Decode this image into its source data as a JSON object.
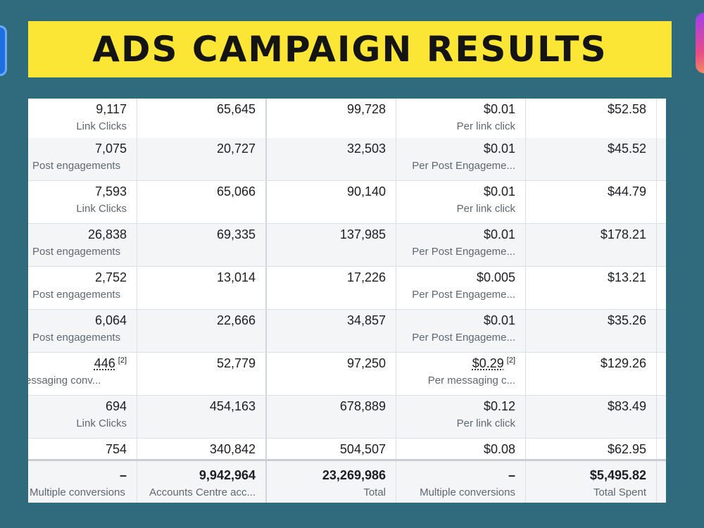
{
  "banner": {
    "title": "ADS CAMPAIGN RESULTS"
  },
  "table": {
    "rows": [
      {
        "results": "9,117",
        "results_type": "Link Clicks",
        "reach": "65,645",
        "impressions": "99,728",
        "cost": "$0.01",
        "cost_type": "Per link click",
        "spent": "$52.58"
      },
      {
        "results": "7,075",
        "results_type": "Post engagements",
        "reach": "20,727",
        "impressions": "32,503",
        "cost": "$0.01",
        "cost_type": "Per Post Engageme...",
        "spent": "$45.52"
      },
      {
        "results": "7,593",
        "results_type": "Link Clicks",
        "reach": "65,066",
        "impressions": "90,140",
        "cost": "$0.01",
        "cost_type": "Per link click",
        "spent": "$44.79"
      },
      {
        "results": "26,838",
        "results_type": "Post engagements",
        "reach": "69,335",
        "impressions": "137,985",
        "cost": "$0.01",
        "cost_type": "Per Post Engageme...",
        "spent": "$178.21"
      },
      {
        "results": "2,752",
        "results_type": "Post engagements",
        "reach": "13,014",
        "impressions": "17,226",
        "cost": "$0.005",
        "cost_type": "Per Post Engageme...",
        "spent": "$13.21"
      },
      {
        "results": "6,064",
        "results_type": "Post engagements",
        "reach": "22,666",
        "impressions": "34,857",
        "cost": "$0.01",
        "cost_type": "Per Post Engageme...",
        "spent": "$35.26"
      },
      {
        "results": "446",
        "results_footnote": "[2]",
        "results_type": "essaging conv...",
        "reach": "52,779",
        "impressions": "97,250",
        "cost": "$0.29",
        "cost_footnote": "[2]",
        "cost_type": "Per messaging c...",
        "spent": "$129.26"
      },
      {
        "results": "694",
        "results_type": "Link Clicks",
        "reach": "454,163",
        "impressions": "678,889",
        "cost": "$0.12",
        "cost_type": "Per link click",
        "spent": "$83.49"
      },
      {
        "results": "754",
        "results_type": "",
        "reach": "340,842",
        "impressions": "504,507",
        "cost": "$0.08",
        "cost_type": "",
        "spent": "$62.95"
      }
    ],
    "totals": {
      "results": "–",
      "results_label": "Multiple conversions",
      "reach": "9,942,964",
      "reach_label": "Accounts Centre acc...",
      "impressions": "23,269,986",
      "impressions_label": "Total",
      "cost": "–",
      "cost_label": "Multiple conversions",
      "spent": "$5,495.82",
      "spent_label": "Total Spent"
    }
  },
  "colors": {
    "background": "#2f6b7c",
    "banner": "#fbe635",
    "row_alt": "#f4f5f7"
  }
}
